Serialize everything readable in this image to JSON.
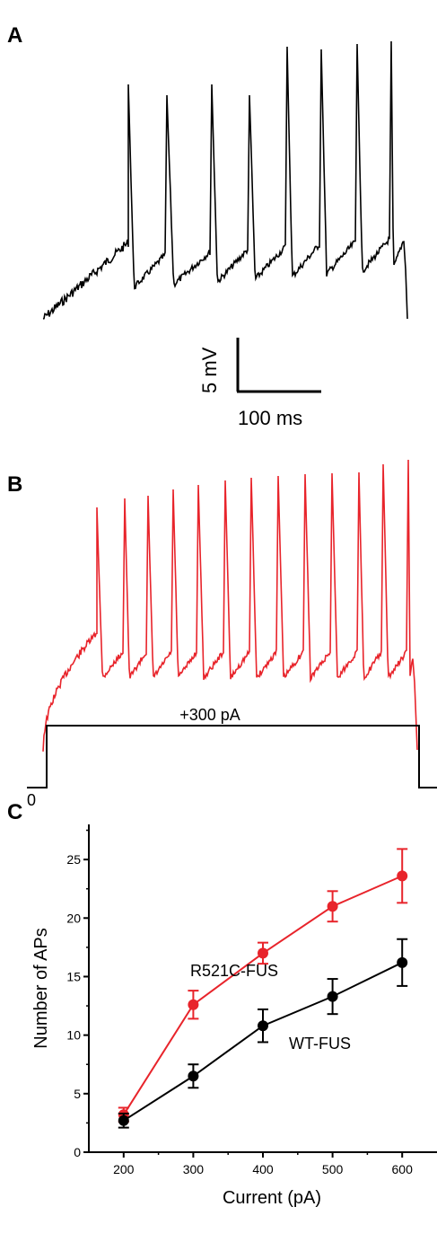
{
  "panels": {
    "a_label": "A",
    "b_label": "B",
    "c_label": "C"
  },
  "scale_bar": {
    "voltage_label": "5 mV",
    "time_label": "100 ms"
  },
  "stimulus": {
    "step_label": "+300 pA",
    "baseline_label": "0"
  },
  "traces": [
    {
      "panel": "A",
      "color": "#000000",
      "spike_count": 8,
      "spike_peaks": [
        0.72,
        0.68,
        0.72,
        0.68,
        0.86,
        0.85,
        0.87,
        0.88
      ]
    },
    {
      "panel": "B",
      "color": "#e8242b",
      "spike_count": 13
    }
  ],
  "chart_data": {
    "type": "line",
    "title": "",
    "xlabel": "Current (pA)",
    "ylabel": "Number of APs",
    "x": [
      200,
      300,
      400,
      500,
      600
    ],
    "xlim": [
      150,
      650
    ],
    "ylim": [
      0,
      28
    ],
    "xticks": [
      "200",
      "300",
      "400",
      "500",
      "600"
    ],
    "yticks": [
      "0",
      "5",
      "10",
      "15",
      "20",
      "25"
    ],
    "grid": false,
    "series": [
      {
        "name": "R521C-FUS",
        "color": "#e8242b",
        "values": [
          3.2,
          12.6,
          17.0,
          21.0,
          23.6
        ],
        "errors": [
          0.6,
          1.2,
          0.9,
          1.3,
          2.3
        ]
      },
      {
        "name": "WT-FUS",
        "color": "#000000",
        "values": [
          2.7,
          6.5,
          10.8,
          13.3,
          16.2
        ],
        "errors": [
          0.6,
          1.0,
          1.4,
          1.5,
          2.0
        ]
      }
    ]
  }
}
